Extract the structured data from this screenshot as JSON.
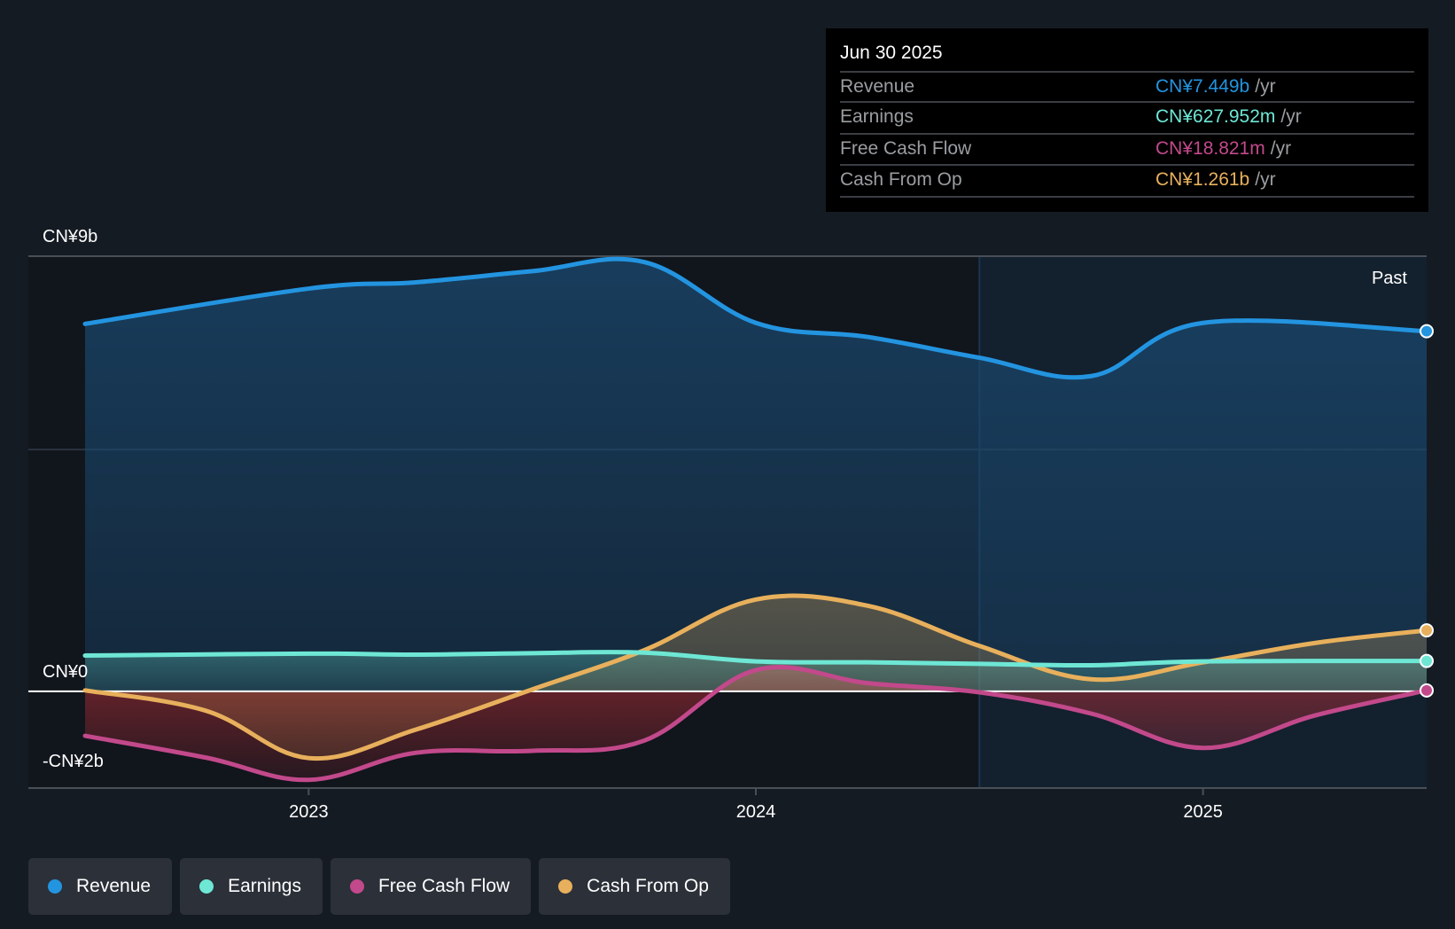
{
  "tooltip": {
    "date": "Jun 30 2025",
    "rows": [
      {
        "label": "Revenue",
        "value": "CN¥7.449b",
        "unit": "/yr",
        "color": "#2394e0"
      },
      {
        "label": "Earnings",
        "value": "CN¥627.952m",
        "unit": "/yr",
        "color": "#6ee7d5"
      },
      {
        "label": "Free Cash Flow",
        "value": "CN¥18.821m",
        "unit": "/yr",
        "color": "#c2498b"
      },
      {
        "label": "Cash From Op",
        "value": "CN¥1.261b",
        "unit": "/yr",
        "color": "#e8b05c"
      }
    ]
  },
  "legend": [
    {
      "label": "Revenue",
      "color": "#2394e0"
    },
    {
      "label": "Earnings",
      "color": "#6ee7d5"
    },
    {
      "label": "Free Cash Flow",
      "color": "#c2498b"
    },
    {
      "label": "Cash From Op",
      "color": "#e8b05c"
    }
  ],
  "chart_data": {
    "type": "area",
    "title": "",
    "xlabel": "",
    "ylabel": "",
    "ylim": [
      -2,
      9
    ],
    "xlim": [
      2022.37,
      2025.5
    ],
    "y_ticks": [
      {
        "value": 9,
        "label": "CN¥9b"
      },
      {
        "value": 0,
        "label": "CN¥0"
      },
      {
        "value": -2,
        "label": "-CN¥2b"
      }
    ],
    "gridlines": [
      9,
      5
    ],
    "x_ticks": [
      {
        "value": 2023,
        "label": "2023"
      },
      {
        "value": 2024,
        "label": "2024"
      },
      {
        "value": 2025,
        "label": "2025"
      }
    ],
    "past_label": "Past",
    "past_region_start": 2024.5,
    "units": "CN¥ billions",
    "series": [
      {
        "name": "Revenue",
        "color": "#2394e0",
        "x": [
          2022.5,
          2023.0,
          2023.24,
          2023.5,
          2023.75,
          2024.0,
          2024.25,
          2024.5,
          2024.75,
          2025.0,
          2025.5
        ],
        "values": [
          7.6,
          8.33,
          8.46,
          8.69,
          8.88,
          7.62,
          7.33,
          6.9,
          6.52,
          7.62,
          7.449
        ]
      },
      {
        "name": "Earnings",
        "color": "#6ee7d5",
        "x": [
          2022.5,
          2023.0,
          2023.24,
          2023.5,
          2023.75,
          2024.0,
          2024.25,
          2024.5,
          2024.75,
          2025.0,
          2025.5
        ],
        "values": [
          0.74,
          0.78,
          0.76,
          0.79,
          0.8,
          0.62,
          0.6,
          0.57,
          0.54,
          0.62,
          0.628
        ]
      },
      {
        "name": "Free Cash Flow",
        "color": "#c2498b",
        "x": [
          2022.5,
          2022.77,
          2023.0,
          2023.24,
          2023.5,
          2023.75,
          2024.0,
          2024.25,
          2024.5,
          2024.75,
          2025.0,
          2025.25,
          2025.5
        ],
        "values": [
          -0.92,
          -1.37,
          -1.83,
          -1.27,
          -1.23,
          -1.02,
          0.44,
          0.17,
          -0.02,
          -0.46,
          -1.17,
          -0.5,
          0.019
        ]
      },
      {
        "name": "Cash From Op",
        "color": "#e8b05c",
        "x": [
          2022.5,
          2022.77,
          2023.0,
          2023.24,
          2023.5,
          2023.75,
          2024.0,
          2024.25,
          2024.5,
          2024.75,
          2025.0,
          2025.25,
          2025.5
        ],
        "values": [
          0.02,
          -0.4,
          -1.38,
          -0.79,
          0.04,
          0.85,
          1.9,
          1.77,
          0.94,
          0.25,
          0.6,
          1.0,
          1.261
        ]
      }
    ]
  }
}
